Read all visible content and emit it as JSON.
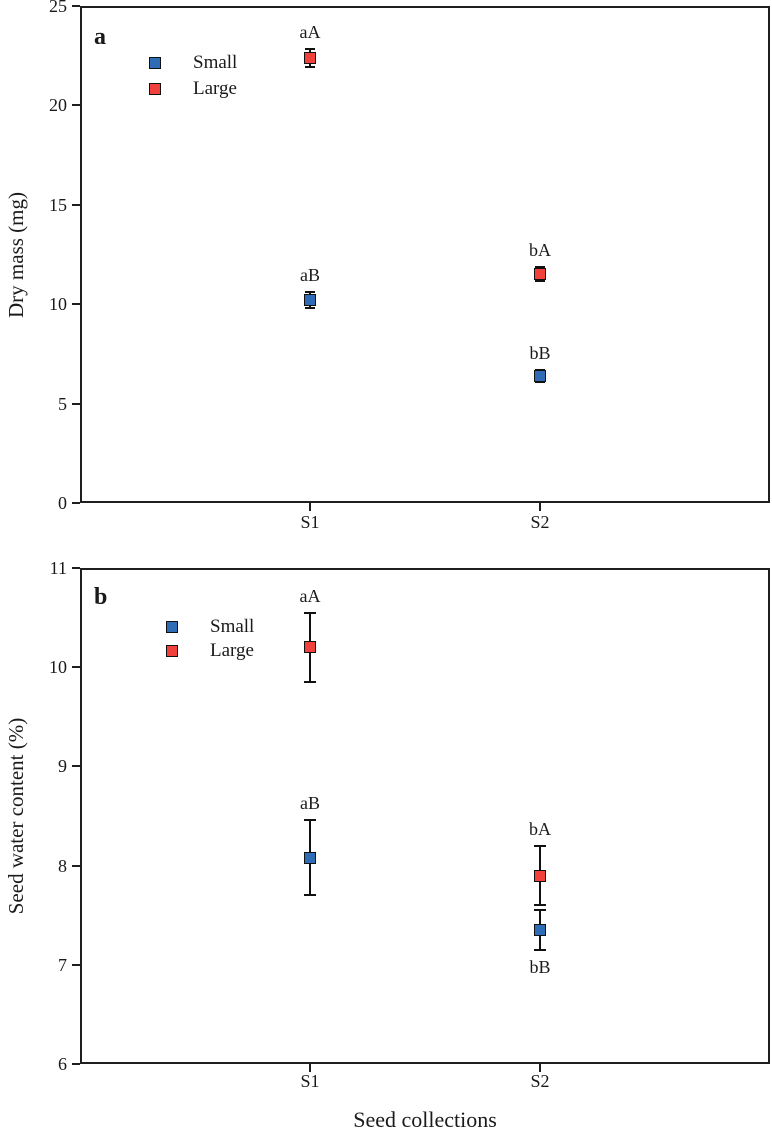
{
  "figure": {
    "xlabel": "Seed collections",
    "colors": {
      "small": "#2e6db6",
      "large": "#f0413d",
      "axis": "#1f1f1f"
    }
  },
  "chart_data": [
    {
      "type": "scatter",
      "panel_label": "a",
      "title": "",
      "ylabel": "Dry mass (mg)",
      "xlabel": "Seed collections",
      "ylim": [
        0,
        25
      ],
      "yticks": [
        0,
        5,
        10,
        15,
        20,
        25
      ],
      "categories": [
        "S1",
        "S2"
      ],
      "grid": false,
      "legend_position": "upper-left-inside",
      "series": [
        {
          "name": "Small",
          "color": "#2e6db6",
          "values": [
            10.2,
            6.4
          ],
          "errors": [
            0.4,
            0.3
          ],
          "annotations": [
            "aB",
            "bB"
          ],
          "annotation_pos": [
            "above",
            "above"
          ]
        },
        {
          "name": "Large",
          "color": "#f0413d",
          "values": [
            22.4,
            11.5
          ],
          "errors": [
            0.45,
            0.35
          ],
          "annotations": [
            "aA",
            "bA"
          ],
          "annotation_pos": [
            "above",
            "above"
          ]
        }
      ]
    },
    {
      "type": "scatter",
      "panel_label": "b",
      "title": "",
      "ylabel": "Seed water content (%)",
      "xlabel": "Seed collections",
      "ylim": [
        6,
        11
      ],
      "yticks": [
        6,
        7,
        8,
        9,
        10,
        11
      ],
      "categories": [
        "S1",
        "S2"
      ],
      "grid": false,
      "legend_position": "upper-left-inside",
      "series": [
        {
          "name": "Small",
          "color": "#2e6db6",
          "values": [
            8.08,
            7.35
          ],
          "errors": [
            0.38,
            0.2
          ],
          "annotations": [
            "aB",
            "bB"
          ],
          "annotation_pos": [
            "above",
            "below"
          ]
        },
        {
          "name": "Large",
          "color": "#f0413d",
          "values": [
            10.2,
            7.9
          ],
          "errors": [
            0.35,
            0.3
          ],
          "annotations": [
            "aA",
            "bA"
          ],
          "annotation_pos": [
            "above",
            "above"
          ]
        }
      ]
    }
  ]
}
